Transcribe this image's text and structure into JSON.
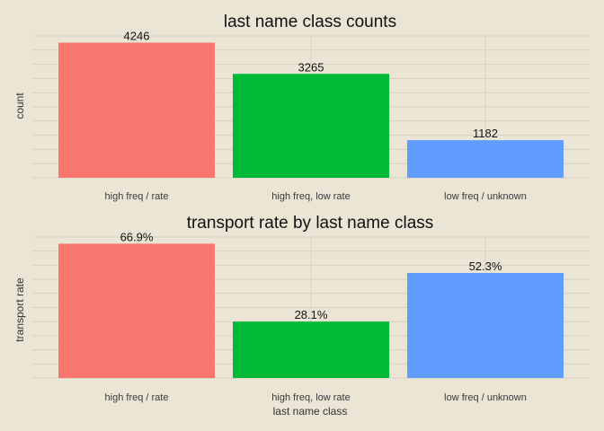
{
  "chart_data": [
    {
      "type": "bar",
      "title": "last name class counts",
      "xlabel": "",
      "ylabel": "count",
      "categories": [
        "high freq / rate",
        "high freq, low rate",
        "low freq / unknown"
      ],
      "values": [
        4246,
        3265,
        1182
      ],
      "value_labels": [
        "4246",
        "3265",
        "1182"
      ],
      "colors": [
        "#f8766d",
        "#00ba38",
        "#619cff"
      ],
      "ylim": [
        0,
        4458
      ],
      "grid": true,
      "legend": "none",
      "y_tick_labels": "hidden"
    },
    {
      "type": "bar",
      "title": "transport rate by last name class",
      "xlabel": "last name class",
      "ylabel": "transport rate",
      "categories": [
        "high freq / rate",
        "high freq, low rate",
        "low freq / unknown"
      ],
      "values": [
        0.669,
        0.281,
        0.523
      ],
      "value_labels": [
        "66.9%",
        "28.1%",
        "52.3%"
      ],
      "colors": [
        "#f8766d",
        "#00ba38",
        "#619cff"
      ],
      "ylim": [
        0,
        0.702
      ],
      "grid": true,
      "legend": "none",
      "y_tick_labels": "hidden"
    }
  ]
}
